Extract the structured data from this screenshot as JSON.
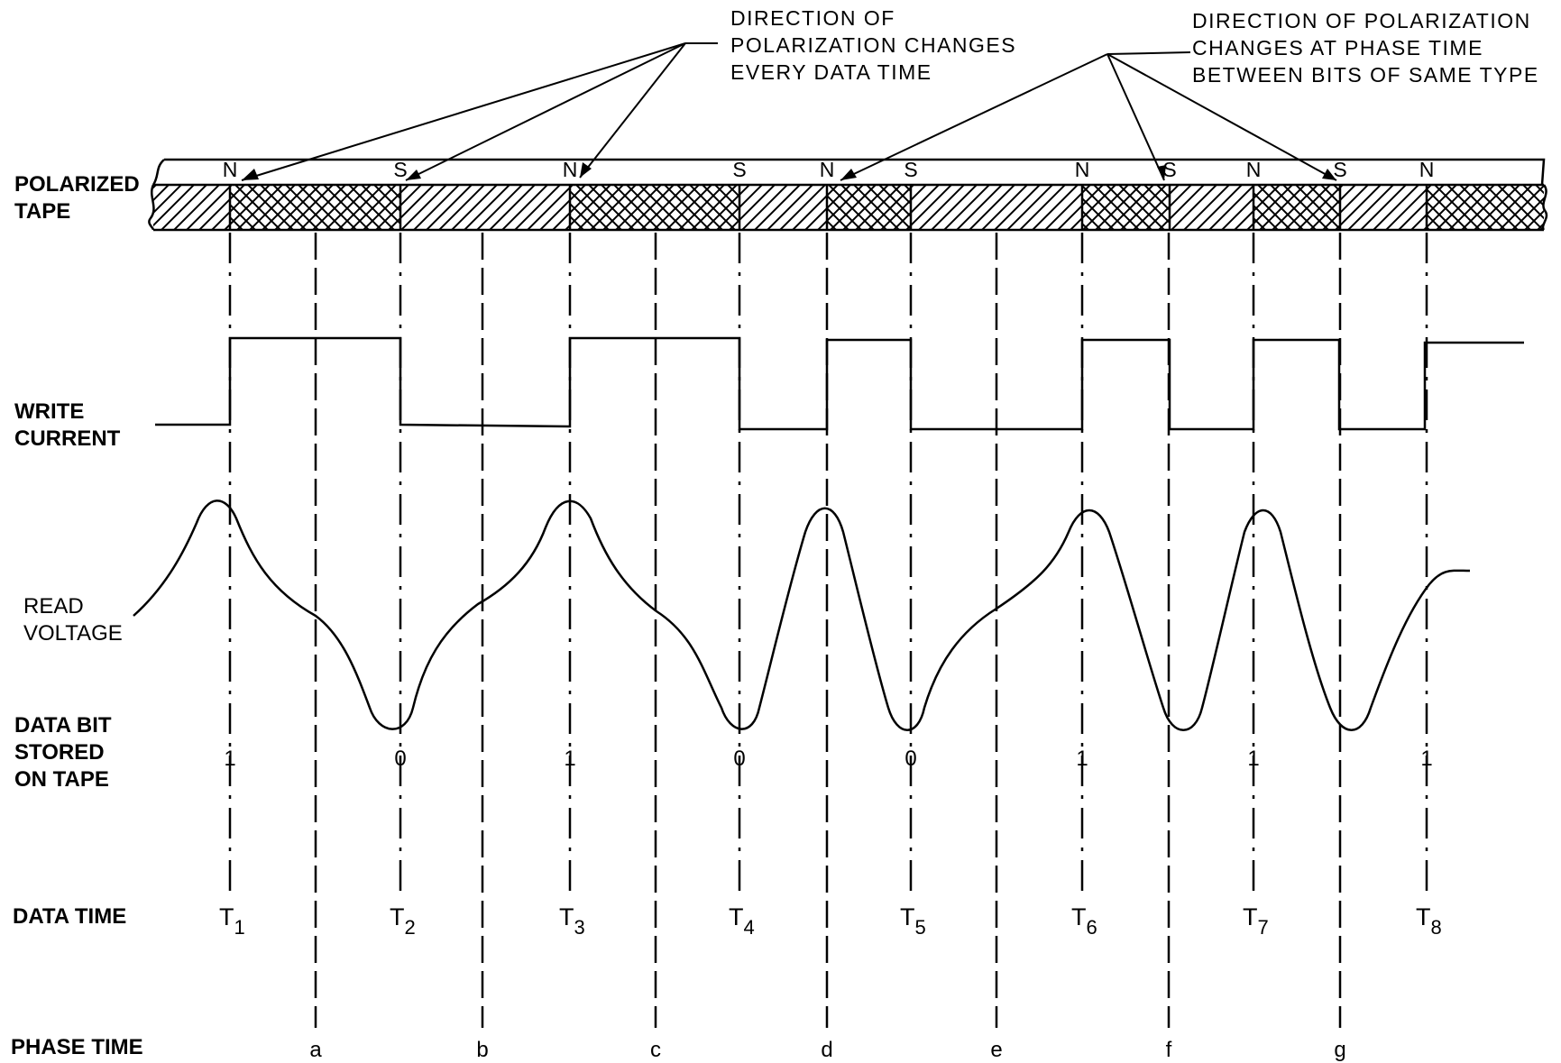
{
  "row_labels": {
    "polarized_tape": "POLARIZED\nTAPE",
    "write_current": "WRITE\nCURRENT",
    "read_voltage": "READ\nVOLTAGE",
    "data_bit": "DATA BIT\nSTORED\nON TAPE",
    "data_time": "DATA TIME",
    "phase_time": "PHASE TIME"
  },
  "annotations": {
    "left": "DIRECTION OF\nPOLARIZATION CHANGES\nEVERY DATA TIME",
    "right": "DIRECTION OF POLARIZATION\nCHANGES AT PHASE TIME\nBETWEEN BITS OF SAME TYPE"
  },
  "polarity_marks": [
    "N",
    "S",
    "N",
    "S",
    "N",
    "S",
    "N",
    "S",
    "N",
    "S",
    "N"
  ],
  "data_bits": [
    "1",
    "0",
    "1",
    "0",
    "0",
    "1",
    "1",
    "1"
  ],
  "data_times": [
    {
      "base": "T",
      "sub": "1"
    },
    {
      "base": "T",
      "sub": "2"
    },
    {
      "base": "T",
      "sub": "3"
    },
    {
      "base": "T",
      "sub": "4"
    },
    {
      "base": "T",
      "sub": "5"
    },
    {
      "base": "T",
      "sub": "6"
    },
    {
      "base": "T",
      "sub": "7"
    },
    {
      "base": "T",
      "sub": "8"
    }
  ],
  "phase_times": [
    "a",
    "b",
    "c",
    "d",
    "e",
    "f",
    "g"
  ]
}
